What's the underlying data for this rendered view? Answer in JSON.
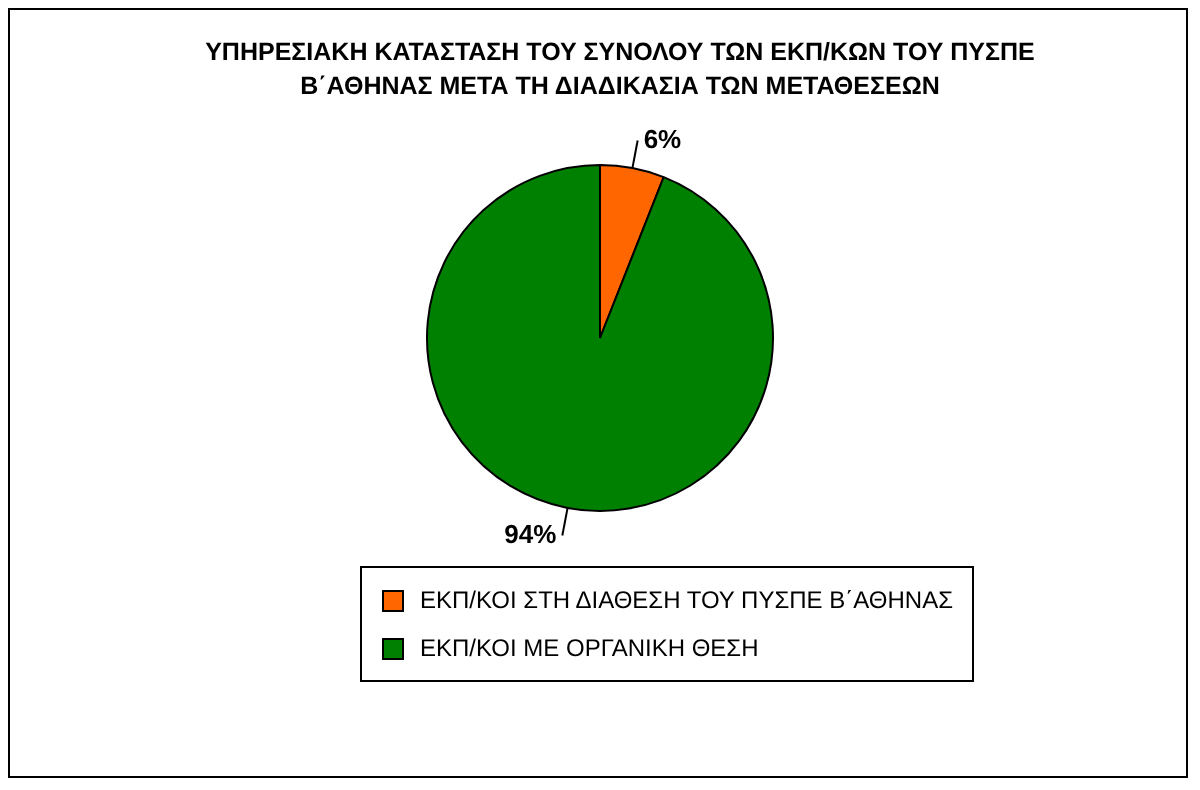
{
  "chart_data": {
    "type": "pie",
    "title": "ΥΠΗΡΕΣΙΑΚΗ ΚΑΤΑΣΤΑΣΗ ΤΟΥ ΣΥΝΟΛΟΥ ΤΩΝ ΕΚΠ/ΚΩΝ ΤΟΥ ΠΥΣΠΕ Β΄ΑΘΗΝΑΣ ΜΕΤΑ  ΤΗ ΔΙΑΔΙΚΑΣΙΑ ΤΩΝ ΜΕΤΑΘΕΣΕΩΝ",
    "categories": [
      "ΕΚΠ/ΚΟΙ ΣΤΗ ΔΙΑΘΕΣΗ ΤΟΥ ΠΥΣΠΕ Β΄ΑΘΗΝΑΣ",
      "ΕΚΠ/ΚΟΙ ΜΕ ΟΡΓΑΝΙΚΗ ΘΕΣΗ"
    ],
    "values": [
      6,
      94
    ],
    "colors": [
      "#ff6600",
      "#008000"
    ],
    "value_labels": [
      "6%",
      "94%"
    ],
    "legend": "bottom"
  }
}
